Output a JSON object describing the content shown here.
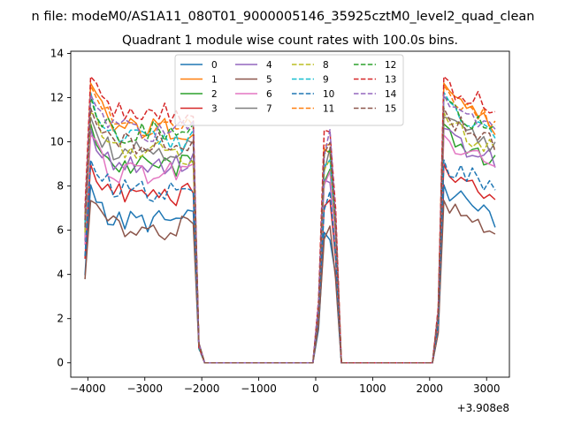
{
  "figure": {
    "suptitle": "n file: modeM0/AS1A11_080T01_9000005146_35925cztM0_level2_quad_clean"
  },
  "chart_data": {
    "type": "line",
    "title": "Quadrant 1 module wise count rates with 100.0s bins.",
    "xlabel": "",
    "ylabel": "",
    "x_offset_label": "+3.908e8",
    "xlim": [
      -4300,
      3400
    ],
    "ylim": [
      -0.65,
      14.1
    ],
    "xticks": [
      -4000,
      -3000,
      -2000,
      -1000,
      0,
      1000,
      2000,
      3000
    ],
    "xtick_labels": [
      "−4000",
      "−3000",
      "−2000",
      "−1000",
      "0",
      "1000",
      "2000",
      "3000"
    ],
    "yticks": [
      0,
      2,
      4,
      6,
      8,
      10,
      12,
      14
    ],
    "ytick_labels": [
      "0",
      "2",
      "4",
      "6",
      "8",
      "10",
      "12",
      "14"
    ],
    "grid": false,
    "legend_position": "top-center",
    "legend_columns": 4,
    "segments": [
      {
        "start": -4050,
        "end": -2150
      },
      {
        "start": 50,
        "end": 350
      },
      {
        "start": 2150,
        "end": 3150
      }
    ],
    "gap_points": [
      -2050,
      -1950,
      -1850,
      350,
      2050
    ],
    "series": [
      {
        "name": "0",
        "color": "#1f77b4",
        "dash": false,
        "level": 6.4,
        "peak": 7.9
      },
      {
        "name": "1",
        "color": "#ff7f0e",
        "dash": false,
        "level": 10.6,
        "peak": 12.4
      },
      {
        "name": "2",
        "color": "#2ca02c",
        "dash": false,
        "level": 8.9,
        "peak": 10.6
      },
      {
        "name": "3",
        "color": "#d62728",
        "dash": false,
        "level": 7.6,
        "peak": 8.8
      },
      {
        "name": "4",
        "color": "#9467bd",
        "dash": false,
        "level": 9.0,
        "peak": 10.4
      },
      {
        "name": "5",
        "color": "#8c564b",
        "dash": false,
        "level": 6.1,
        "peak": 7.2
      },
      {
        "name": "6",
        "color": "#e377c2",
        "dash": false,
        "level": 8.6,
        "peak": 10.1
      },
      {
        "name": "7",
        "color": "#7f7f7f",
        "dash": false,
        "level": 9.7,
        "peak": 10.9
      },
      {
        "name": "8",
        "color": "#bcbd22",
        "dash": true,
        "level": 9.5,
        "peak": 11.1
      },
      {
        "name": "9",
        "color": "#17becf",
        "dash": true,
        "level": 10.1,
        "peak": 12.0
      },
      {
        "name": "10",
        "color": "#1f77b4",
        "dash": true,
        "level": 7.8,
        "peak": 9.0
      },
      {
        "name": "11",
        "color": "#ff7f0e",
        "dash": true,
        "level": 10.7,
        "peak": 12.3
      },
      {
        "name": "12",
        "color": "#2ca02c",
        "dash": true,
        "level": 10.4,
        "peak": 11.8
      },
      {
        "name": "13",
        "color": "#d62728",
        "dash": true,
        "level": 11.3,
        "peak": 12.7
      },
      {
        "name": "14",
        "color": "#9467bd",
        "dash": true,
        "level": 10.5,
        "peak": 11.9
      },
      {
        "name": "15",
        "color": "#8c564b",
        "dash": true,
        "level": 9.9,
        "peak": 11.3
      }
    ]
  }
}
